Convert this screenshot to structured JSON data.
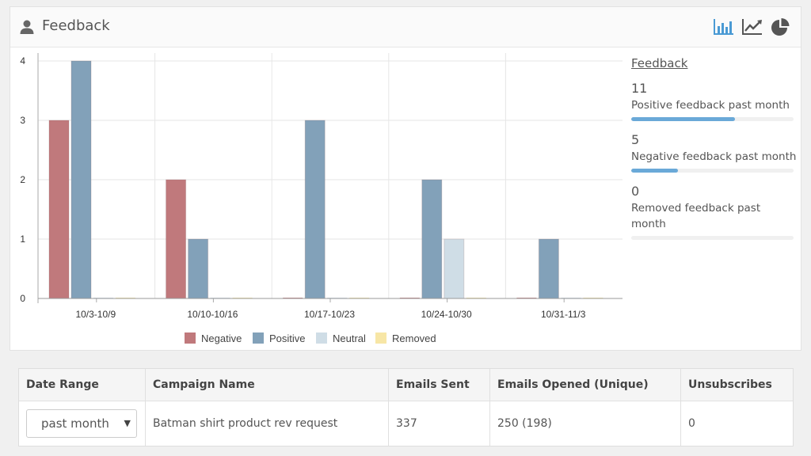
{
  "panel": {
    "title": "Feedback",
    "user_icon": "user-icon"
  },
  "toolbar": {
    "bar_icon": "bar-chart-icon",
    "line_icon": "line-chart-icon",
    "pie_icon": "pie-chart-icon",
    "active_color": "#4a9ad4"
  },
  "chart_data": {
    "type": "bar",
    "categories": [
      "10/3-10/9",
      "10/10-10/16",
      "10/17-10/23",
      "10/24-10/30",
      "10/31-11/3"
    ],
    "series": [
      {
        "name": "Negative",
        "color": "#c0797c",
        "values": [
          3,
          2,
          0,
          0,
          0
        ]
      },
      {
        "name": "Positive",
        "color": "#82a1b9",
        "values": [
          4,
          1,
          3,
          2,
          1
        ]
      },
      {
        "name": "Neutral",
        "color": "#cfdde6",
        "values": [
          0,
          0,
          0,
          1,
          0
        ]
      },
      {
        "name": "Removed",
        "color": "#f7e6a6",
        "values": [
          0,
          0,
          0,
          0,
          0
        ]
      }
    ],
    "yticks": [
      "0",
      "1",
      "2",
      "3",
      "4"
    ],
    "ylim": [
      0,
      4
    ],
    "grid": true,
    "legend_position": "bottom"
  },
  "summary": {
    "title": "Feedback",
    "stats": [
      {
        "value": "11",
        "label": "Positive feedback past month",
        "fraction": 0.64
      },
      {
        "value": "5",
        "label": "Negative feedback past month",
        "fraction": 0.29
      },
      {
        "value": "0",
        "label": "Removed feedback past month",
        "fraction": 0
      }
    ]
  },
  "table": {
    "headers": [
      "Date Range",
      "Campaign Name",
      "Emails Sent",
      "Emails Opened (Unique)",
      "Unsubscribes"
    ],
    "row": {
      "date_range": "past month",
      "campaign": "Batman shirt product rev request",
      "emails_sent": "337",
      "emails_opened": "250 (198)",
      "unsubscribes": "0"
    }
  }
}
